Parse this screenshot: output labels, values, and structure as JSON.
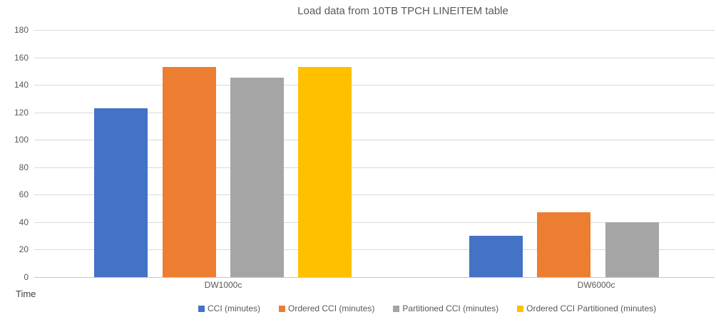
{
  "chart_data": {
    "type": "bar",
    "title": "Load data from 10TB TPCH LINEITEM table",
    "xlabel": "",
    "ylabel": "Time",
    "categories": [
      "DW1000c",
      "DW6000c"
    ],
    "series": [
      {
        "name": "CCI (minutes)",
        "color": "#4472C4",
        "values": [
          123,
          30
        ]
      },
      {
        "name": "Ordered CCI (minutes)",
        "color": "#ED7D31",
        "values": [
          153,
          47
        ]
      },
      {
        "name": "Partitioned CCI (minutes)",
        "color": "#A5A5A5",
        "values": [
          145,
          40
        ]
      },
      {
        "name": "Ordered CCI Partitioned (minutes)",
        "color": "#FFC000",
        "values": [
          153,
          null
        ]
      }
    ],
    "ylim": [
      0,
      180
    ],
    "yticks": [
      0,
      20,
      40,
      60,
      80,
      100,
      120,
      140,
      160,
      180
    ],
    "grid": true,
    "legend_position": "bottom",
    "colors": {
      "text": "#595959",
      "gridline": "#d9d9d9",
      "background": "#ffffff"
    }
  }
}
